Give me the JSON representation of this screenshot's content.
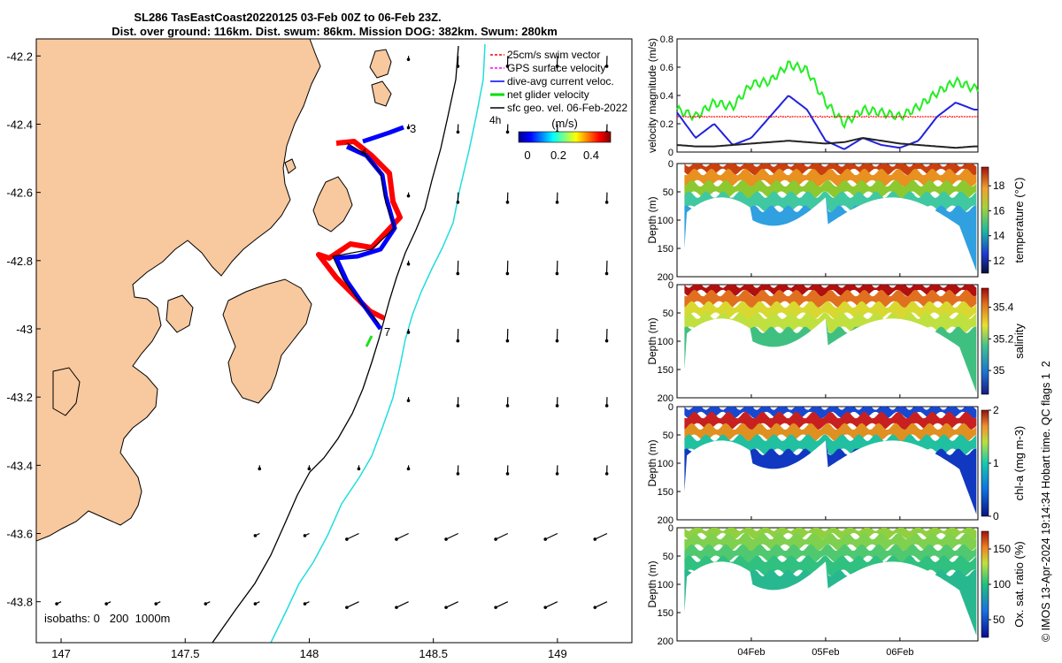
{
  "title": {
    "line1": "SL286 TasEastCoast20220125 03-Feb 00Z to 06-Feb 23Z.",
    "line2": "Dist. over ground: 116km. Dist. swum: 86km. Mission DOG: 382km. Swum: 280km"
  },
  "map": {
    "lon_ticks": [
      "147",
      "147.5",
      "148",
      "148.5",
      "149"
    ],
    "lon_values": [
      147,
      147.5,
      148,
      148.5,
      149
    ],
    "lat_ticks": [
      "-42.2",
      "-42.4",
      "-42.6",
      "-42.8",
      "-43",
      "-43.2",
      "-43.4",
      "-43.6",
      "-43.8"
    ],
    "lat_values": [
      -42.2,
      -42.4,
      -42.6,
      -42.8,
      -43.0,
      -43.2,
      -43.4,
      -43.6,
      -43.8
    ],
    "xlim": [
      146.9,
      149.3
    ],
    "ylim": [
      -43.92,
      -42.15
    ],
    "legend": [
      {
        "label": "25cm/s swim vector",
        "color": "#ff0000"
      },
      {
        "label": "GPS surface velocity",
        "color": "#ff00ff"
      },
      {
        "label": "dive-avg current veloc.",
        "color": "#0000ff"
      },
      {
        "label": "net glider velocity",
        "color": "#00dd00"
      },
      {
        "label": "sfc geo. vel. 06-Feb-2022",
        "color": "#000000"
      }
    ],
    "colorbar_unit": "(m/s)",
    "colorbar_ticks": [
      "0",
      "0.2",
      "0.4"
    ],
    "four_hour_label": "4h",
    "track_labels": [
      "3",
      "4",
      "7"
    ],
    "isobath_label": "isobaths: 0   200  1000m",
    "colors": {
      "land": "#f8c89e",
      "ocean": "#ffffff",
      "isobath_200": "#000000",
      "isobath_1000": "#22dddd"
    }
  },
  "chart_data": [
    {
      "type": "line",
      "title": "",
      "ylabel": "velocity magnitude (m/s)",
      "ylim": [
        0,
        0.8
      ],
      "yticks": [
        "0",
        "0.2",
        "0.4",
        "0.6",
        "0.8"
      ],
      "x_days": [
        3.0,
        3.25,
        3.5,
        3.75,
        4.0,
        4.25,
        4.5,
        4.75,
        5.0,
        5.25,
        5.5,
        5.75,
        6.0,
        6.25,
        6.5,
        6.75,
        7.0
      ],
      "series": [
        {
          "name": "net glider velocity",
          "color": "#22ee22",
          "values": [
            0.3,
            0.25,
            0.35,
            0.32,
            0.48,
            0.5,
            0.62,
            0.58,
            0.35,
            0.2,
            0.3,
            0.28,
            0.25,
            0.32,
            0.42,
            0.5,
            0.45
          ]
        },
        {
          "name": "25cm/s swim vector",
          "color": "#ff0000",
          "values": [
            0.25,
            0.25,
            0.25,
            0.25,
            0.25,
            0.25,
            0.25,
            0.25,
            0.25,
            0.25,
            0.25,
            0.25,
            0.25,
            0.25,
            0.25,
            0.25,
            0.25
          ]
        },
        {
          "name": "dive-avg current veloc.",
          "color": "#2222dd",
          "values": [
            0.28,
            0.1,
            0.2,
            0.05,
            0.1,
            0.25,
            0.4,
            0.3,
            0.08,
            0.02,
            0.1,
            0.05,
            0.03,
            0.08,
            0.25,
            0.35,
            0.3
          ]
        },
        {
          "name": "sfc geo. vel.",
          "color": "#222222",
          "values": [
            0.05,
            0.04,
            0.04,
            0.05,
            0.06,
            0.07,
            0.08,
            0.07,
            0.06,
            0.07,
            0.1,
            0.08,
            0.06,
            0.05,
            0.04,
            0.03,
            0.04
          ]
        }
      ]
    },
    {
      "type": "heatmap",
      "variable": "temperature",
      "label": "temperature (°C)",
      "ylabel": "Depth (m)",
      "ylim": [
        200,
        0
      ],
      "yticks": [
        "0",
        "50",
        "100",
        "150",
        "200"
      ],
      "cbar_ticks": [
        "12",
        "14",
        "16",
        "18"
      ],
      "cbar_range": [
        11,
        19.5
      ]
    },
    {
      "type": "heatmap",
      "variable": "salinity",
      "label": "salinity",
      "ylabel": "Depth (m)",
      "ylim": [
        200,
        0
      ],
      "yticks": [
        "0",
        "50",
        "100",
        "150",
        "200"
      ],
      "cbar_ticks": [
        "35",
        "35.2",
        "35.4"
      ],
      "cbar_range": [
        34.85,
        35.52
      ]
    },
    {
      "type": "heatmap",
      "variable": "chlorophyll",
      "label": "chl-a (mg m-3)",
      "ylabel": "Depth (m)",
      "ylim": [
        200,
        0
      ],
      "yticks": [
        "0",
        "50",
        "100",
        "150",
        "200"
      ],
      "cbar_ticks": [
        "0",
        "1",
        "2"
      ],
      "cbar_range": [
        0,
        2
      ]
    },
    {
      "type": "heatmap",
      "variable": "oxygen saturation",
      "label": "Ox. sat. ratio (%)",
      "ylabel": "Depth (m)",
      "ylim": [
        200,
        0
      ],
      "yticks": [
        "0",
        "50",
        "100",
        "150",
        "200"
      ],
      "cbar_ticks": [
        "50",
        "100",
        "150"
      ],
      "cbar_range": [
        25,
        175
      ]
    }
  ],
  "time_axis": {
    "labels": [
      "04Feb",
      "05Feb",
      "06Feb"
    ],
    "days": [
      4,
      5,
      6
    ],
    "range_days": [
      3.0,
      7.05
    ]
  },
  "watermark": "© IMOS 13-Apr-2024 19:14:34 Hobart time. QC flags 1  2"
}
